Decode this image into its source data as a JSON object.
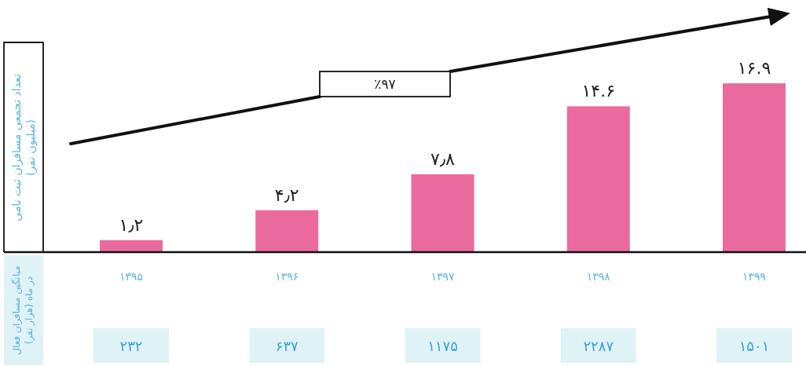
{
  "chart_data": {
    "type": "bar",
    "ylabel": "تعداد تجمعی مسافران ثبت نامی (میلیون نفر)",
    "categories": [
      "۱۳۹۵",
      "۱۳۹۶",
      "۱۳۹۷",
      "۱۳۹۸",
      "۱۳۹۹"
    ],
    "values": [
      1.2,
      4.2,
      7.8,
      14.6,
      16.9
    ],
    "value_labels": [
      "۱٫۲",
      "۴٫۲",
      "۷٫۸",
      "۱۴.۶",
      "۱۶.۹"
    ],
    "color": "#ea6a9e",
    "ylim": [
      0,
      21
    ],
    "tick_labels": "x",
    "annotations": [
      "٪۹۷",
      "میانگین مسافران فعال در ماه (هزار نفر)",
      "۲۳۲",
      "۶۳۷",
      "۱۱۷۵",
      "۲۲۸۷",
      "۱۵۰۱"
    ]
  }
}
